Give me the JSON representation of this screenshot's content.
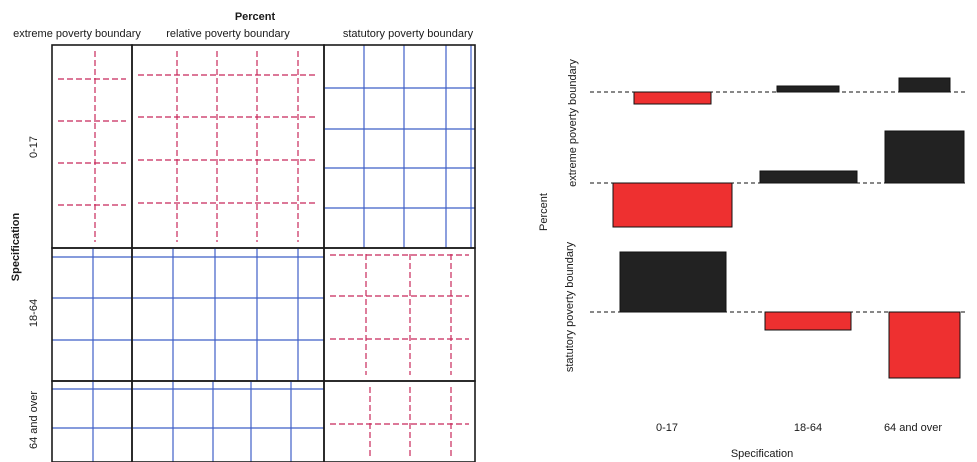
{
  "chart_data": [
    {
      "type": "mosaic",
      "title": "Percent",
      "ylabel": "Specification",
      "columns": [
        "extreme poverty boundary",
        "relative poverty boundary",
        "statutory poverty boundary"
      ],
      "rows": [
        "0-17",
        "18-64",
        "64 and over"
      ],
      "cell_shading": [
        [
          "red-dashed",
          "red-dashed",
          "blue-solid"
        ],
        [
          "blue-solid",
          "blue-solid",
          "red-dashed"
        ],
        [
          "blue-solid",
          "blue-solid",
          "red-dashed"
        ]
      ],
      "colors": {
        "above_expected": "#3f5fc8",
        "below_expected": "#c8285a"
      }
    },
    {
      "type": "bar",
      "xlabel": "Specification",
      "ylabel": "Percent",
      "categories": [
        "0-17",
        "18-64",
        "64 and over"
      ],
      "series": [
        {
          "name": "extreme poverty boundary",
          "values": [
            -0.12,
            0.06,
            0.14
          ]
        },
        {
          "name": "statutory poverty boundary",
          "values": [
            0.6,
            -0.18,
            -0.66
          ]
        }
      ],
      "middle_panel_values": [
        -0.44,
        0.12,
        0.52
      ],
      "colors": {
        "positive": "#222222",
        "negative": "#ee3030"
      }
    }
  ]
}
